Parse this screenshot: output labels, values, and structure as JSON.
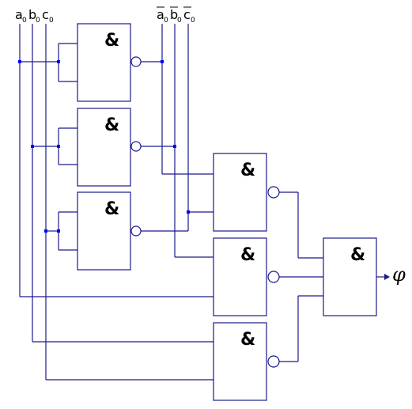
{
  "inputs_left": [
    {
      "name": "a",
      "sub": "0"
    },
    {
      "name": "b",
      "sub": "0"
    },
    {
      "name": "c",
      "sub": "0"
    }
  ],
  "inputs_right": [
    {
      "name": "a",
      "sub": "0"
    },
    {
      "name": "b",
      "sub": "0"
    },
    {
      "name": "c",
      "sub": "0"
    }
  ],
  "gate_symbol": "&",
  "output_label": "φ"
}
